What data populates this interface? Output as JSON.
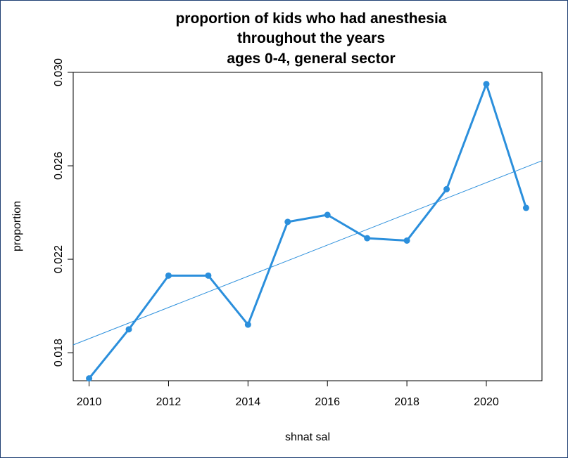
{
  "chart_data": {
    "type": "line",
    "title_lines": [
      "proportion of kids who had anesthesia",
      "throughout the years",
      "ages 0-4, general sector"
    ],
    "xlabel": "shnat sal",
    "ylabel": "proportion",
    "x": [
      2010,
      2011,
      2012,
      2013,
      2014,
      2015,
      2016,
      2017,
      2018,
      2019,
      2020,
      2021
    ],
    "series": [
      {
        "values": [
          0.0169,
          0.019,
          0.0213,
          0.0213,
          0.0192,
          0.0236,
          0.0239,
          0.0229,
          0.0228,
          0.025,
          0.0295,
          0.0242
        ],
        "color": "#2b8fdc"
      }
    ],
    "trend_line": {
      "intercept_at_2010": 0.0186,
      "slope_per_year": 0.000668,
      "color": "#2b8fdc"
    },
    "xlim": [
      2009.6,
      2021.4
    ],
    "ylim": [
      0.0168,
      0.03
    ],
    "xticks": [
      "2010",
      "2012",
      "2014",
      "2016",
      "2018",
      "2020"
    ],
    "yticks": [
      "0.018",
      "0.022",
      "0.026",
      "0.030"
    ],
    "grid": false,
    "legend": "none"
  }
}
